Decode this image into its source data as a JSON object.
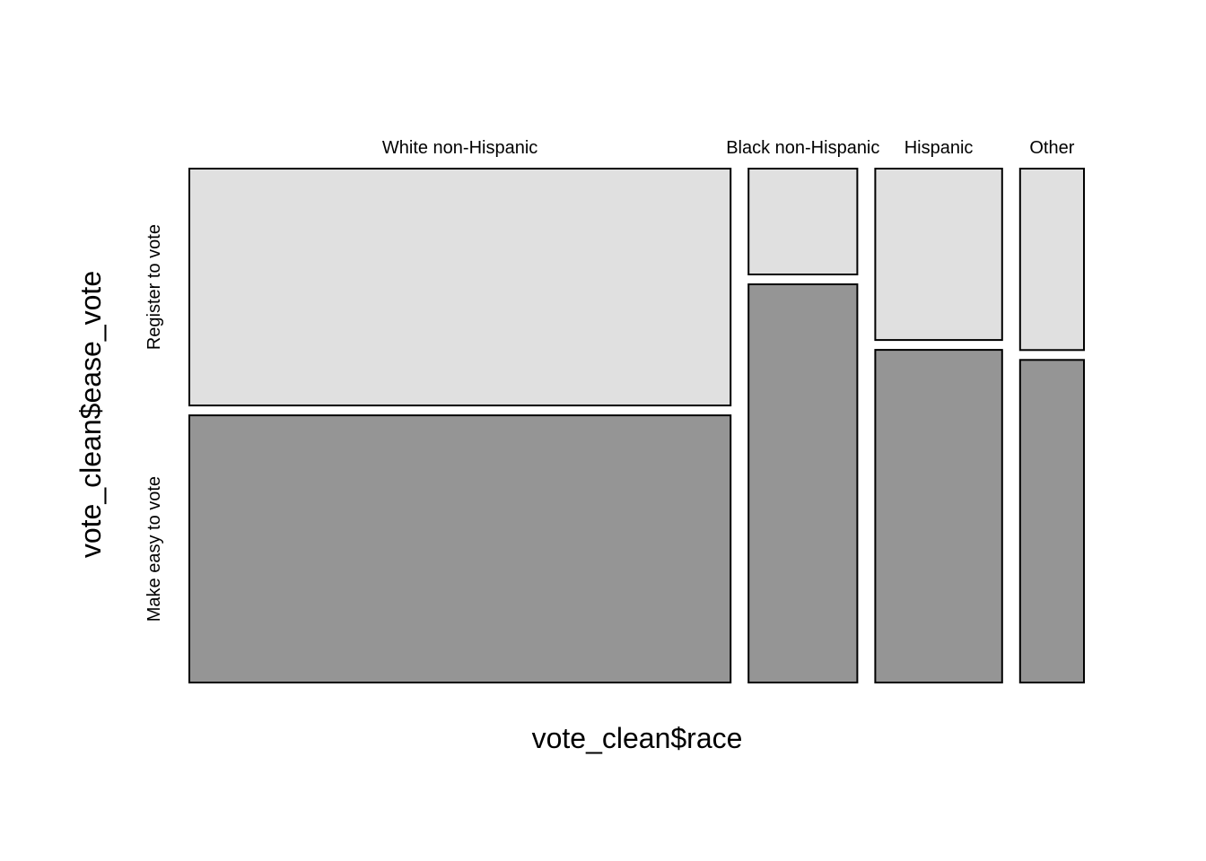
{
  "chart_data": {
    "type": "mosaic",
    "title": "",
    "xlabel": "vote_clean$race",
    "ylabel": "vote_clean$ease_vote",
    "x_categories": [
      "White non-Hispanic",
      "Black non-Hispanic",
      "Hispanic",
      "Other"
    ],
    "x_proportions": [
      0.627,
      0.126,
      0.147,
      0.074
    ],
    "y_categories": [
      "Make easy to vote",
      "Register to vote"
    ],
    "y_colors": [
      "#959595",
      "#e0e0e0"
    ],
    "cell_proportions": {
      "White non-Hispanic": {
        "Make easy to vote": 0.53,
        "Register to vote": 0.47
      },
      "Black non-Hispanic": {
        "Make easy to vote": 0.79,
        "Register to vote": 0.21
      },
      "Hispanic": {
        "Make easy to vote": 0.66,
        "Register to vote": 0.34
      },
      "Other": {
        "Make easy to vote": 0.64,
        "Register to vote": 0.36
      }
    },
    "grid": false,
    "legend": "none"
  }
}
